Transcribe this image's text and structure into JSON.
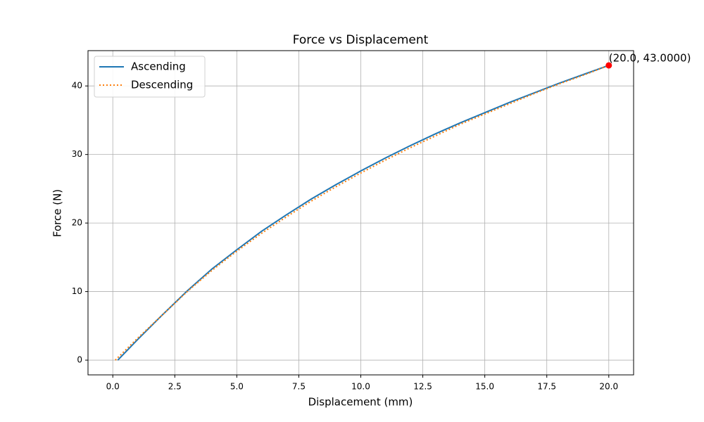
{
  "chart_data": {
    "type": "line",
    "title": "Force vs Displacement",
    "x_label": "Displacement (mm)",
    "y_label": "Force (N)",
    "series": [
      {
        "name": "Ascending",
        "color": "#1f77b4",
        "style": "solid",
        "x": [
          0.2,
          1,
          2,
          3,
          4,
          5,
          6,
          7,
          8,
          9,
          10,
          11,
          12,
          13,
          14,
          15,
          16,
          17,
          18,
          19,
          20
        ],
        "values": [
          0,
          3,
          6.6,
          10.1,
          13.3,
          16.1,
          18.8,
          21.2,
          23.5,
          25.6,
          27.6,
          29.5,
          31.3,
          33,
          34.6,
          36.1,
          37.6,
          39,
          40.4,
          41.7,
          43
        ]
      },
      {
        "name": "Descending",
        "color": "#ff7f0e",
        "style": "dotted",
        "x": [
          0.1,
          1,
          2,
          3,
          4,
          5,
          6,
          7,
          8,
          9,
          10,
          11,
          12,
          13,
          14,
          15,
          16,
          17,
          18,
          19,
          20
        ],
        "values": [
          0,
          3.2,
          6.6,
          10,
          13.1,
          15.9,
          18.5,
          20.9,
          23.2,
          25.3,
          27.3,
          29.2,
          31,
          32.7,
          34.4,
          35.9,
          37.4,
          38.9,
          40.3,
          41.6,
          43
        ]
      }
    ],
    "annotation": {
      "text": "(20.0, 43.0000)",
      "x": 20,
      "y": 43,
      "color": "#ff0000"
    },
    "xlim": [
      -1,
      21
    ],
    "ylim": [
      -2.15,
      45.15
    ],
    "xticks": [
      {
        "value": 0,
        "label": "0.0"
      },
      {
        "value": 2.5,
        "label": "2.5"
      },
      {
        "value": 5,
        "label": "5.0"
      },
      {
        "value": 7.5,
        "label": "7.5"
      },
      {
        "value": 10,
        "label": "10.0"
      },
      {
        "value": 12.5,
        "label": "12.5"
      },
      {
        "value": 15,
        "label": "15.0"
      },
      {
        "value": 17.5,
        "label": "17.5"
      },
      {
        "value": 20,
        "label": "20.0"
      }
    ],
    "yticks": [
      0,
      10,
      20,
      30,
      40
    ],
    "grid": true,
    "legend": "upper-left"
  }
}
